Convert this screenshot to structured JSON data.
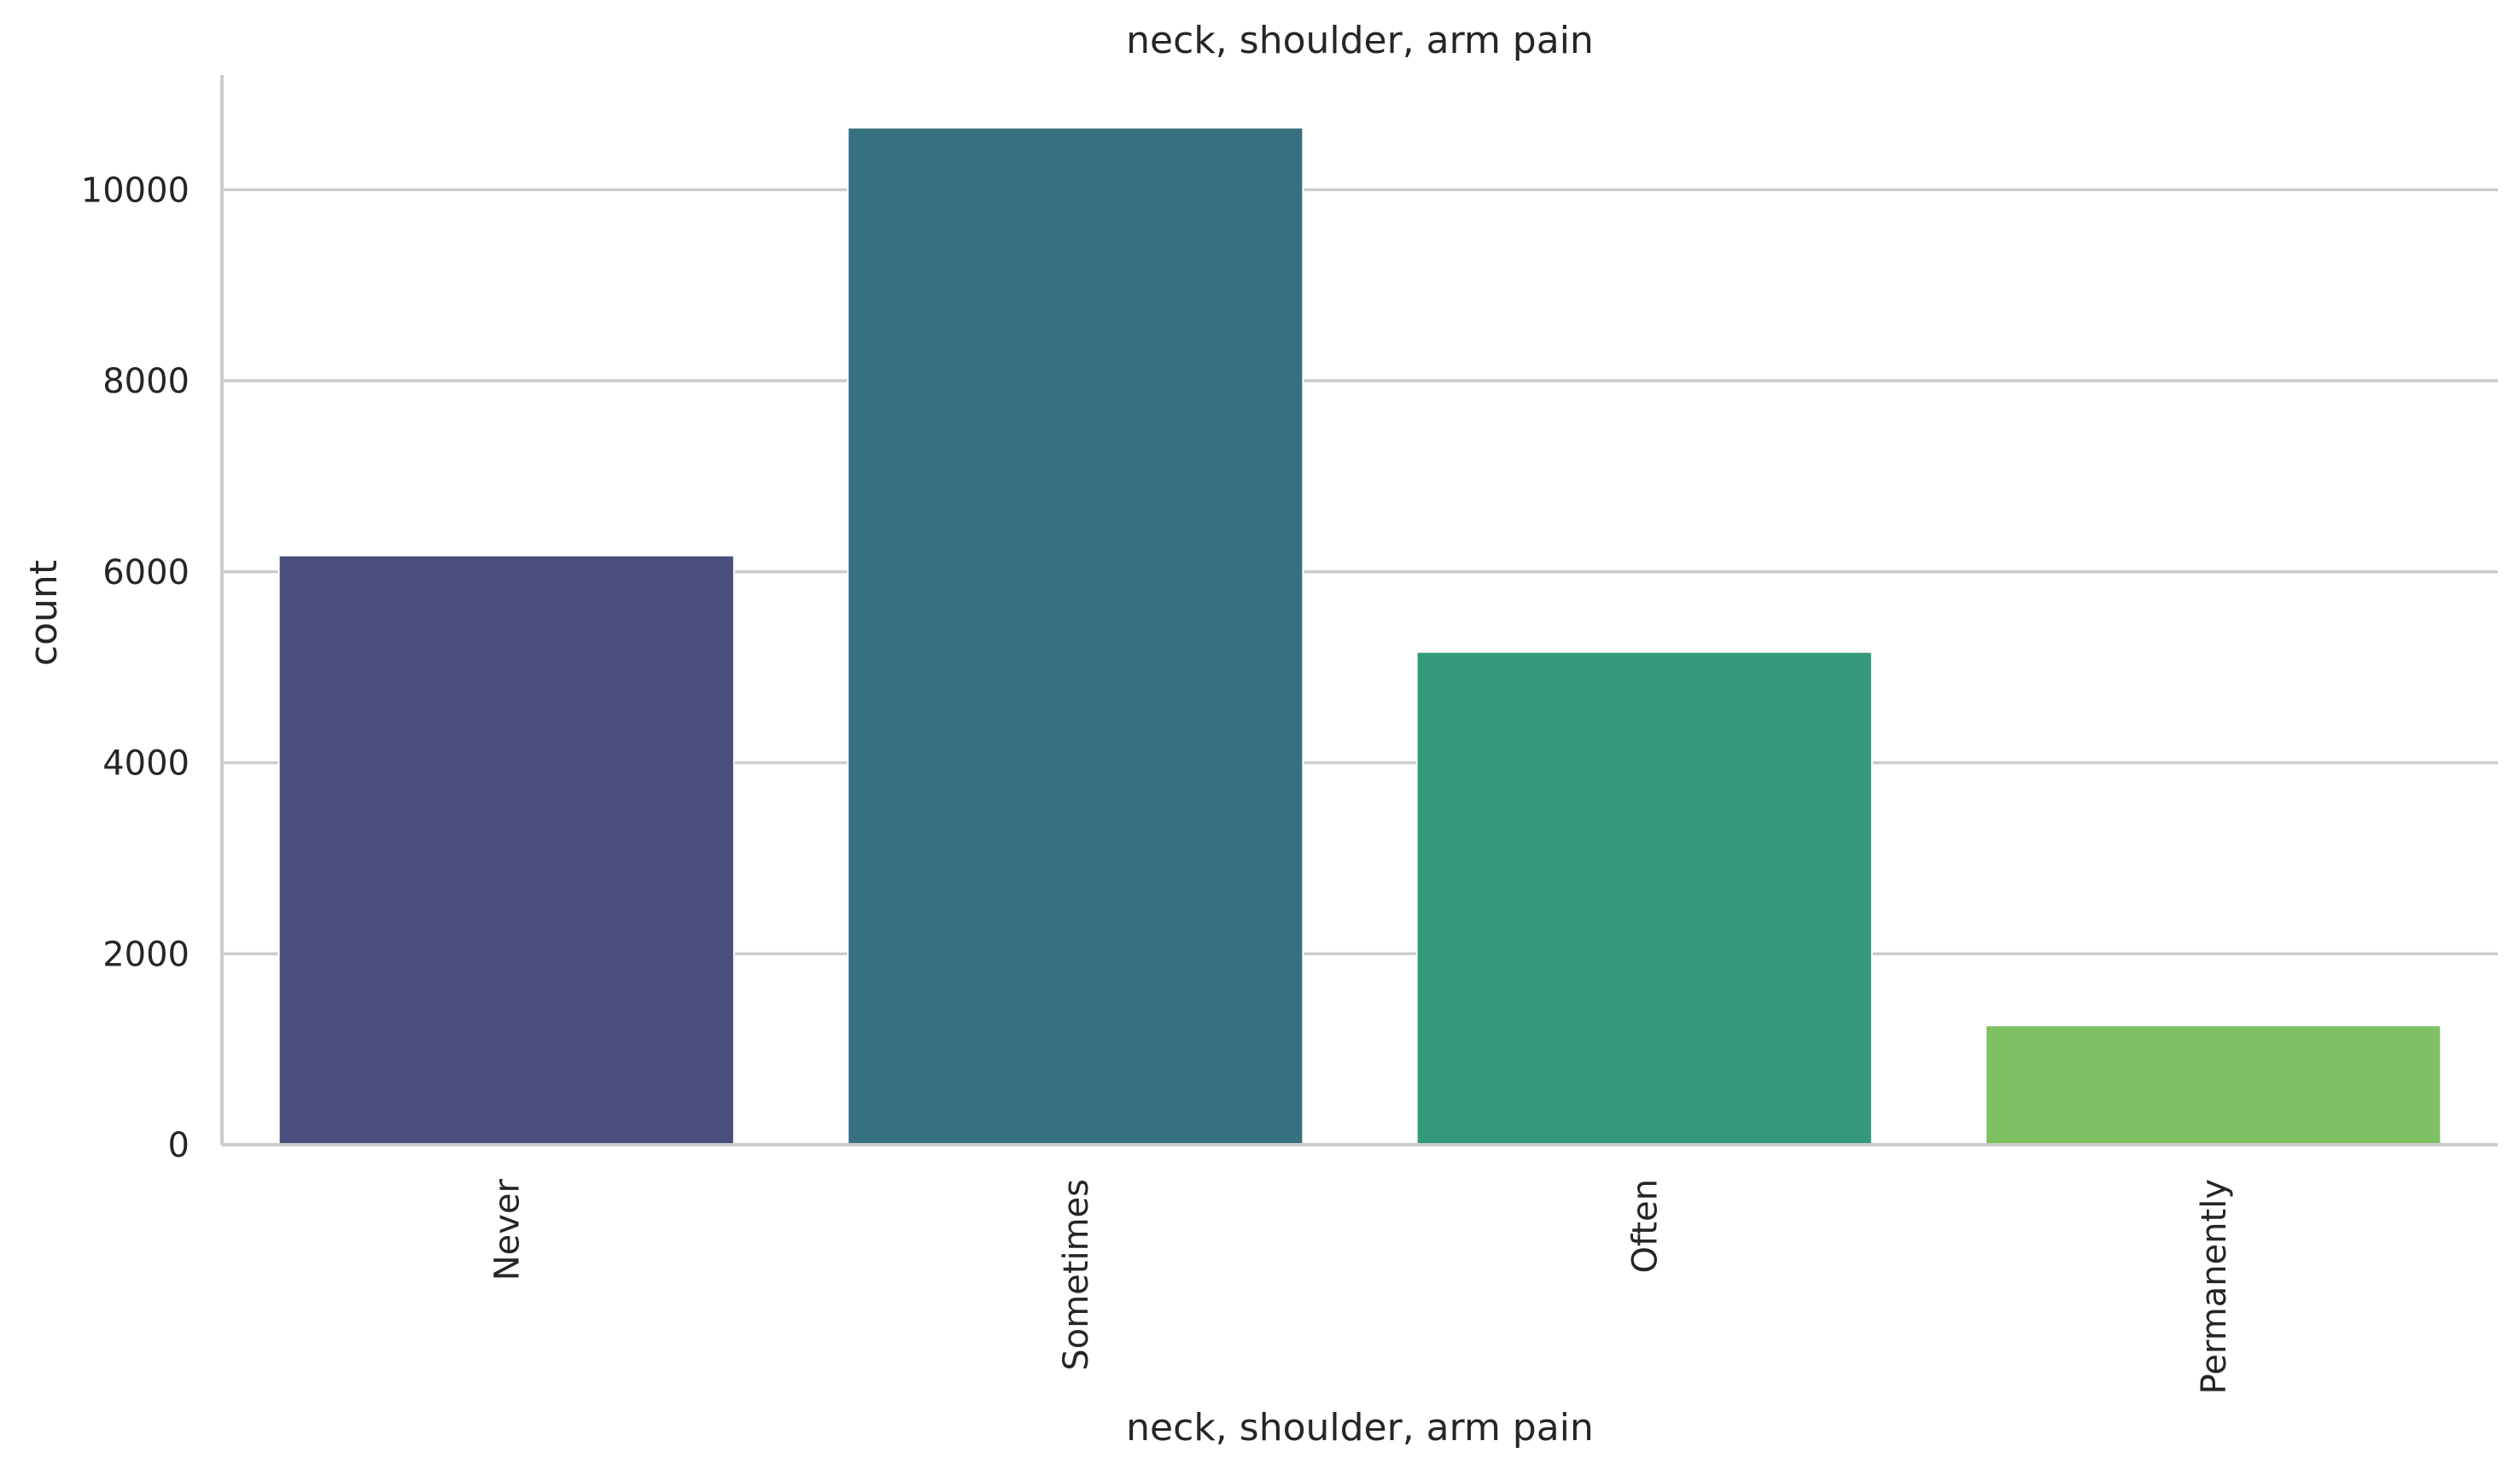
{
  "chart_data": {
    "type": "bar",
    "title": "neck, shoulder, arm pain",
    "xlabel": "neck, shoulder, arm pain",
    "ylabel": "count",
    "categories": [
      "Never",
      "Sometimes",
      "Often",
      "Permanently"
    ],
    "values": [
      6170,
      10650,
      5160,
      1250
    ],
    "ylim": [
      0,
      11200
    ],
    "yticks": [
      0,
      2000,
      4000,
      6000,
      8000,
      10000
    ],
    "grid": true,
    "colors": [
      "#4a4e7c",
      "#37717f",
      "#35987b",
      "#7ec163"
    ]
  }
}
